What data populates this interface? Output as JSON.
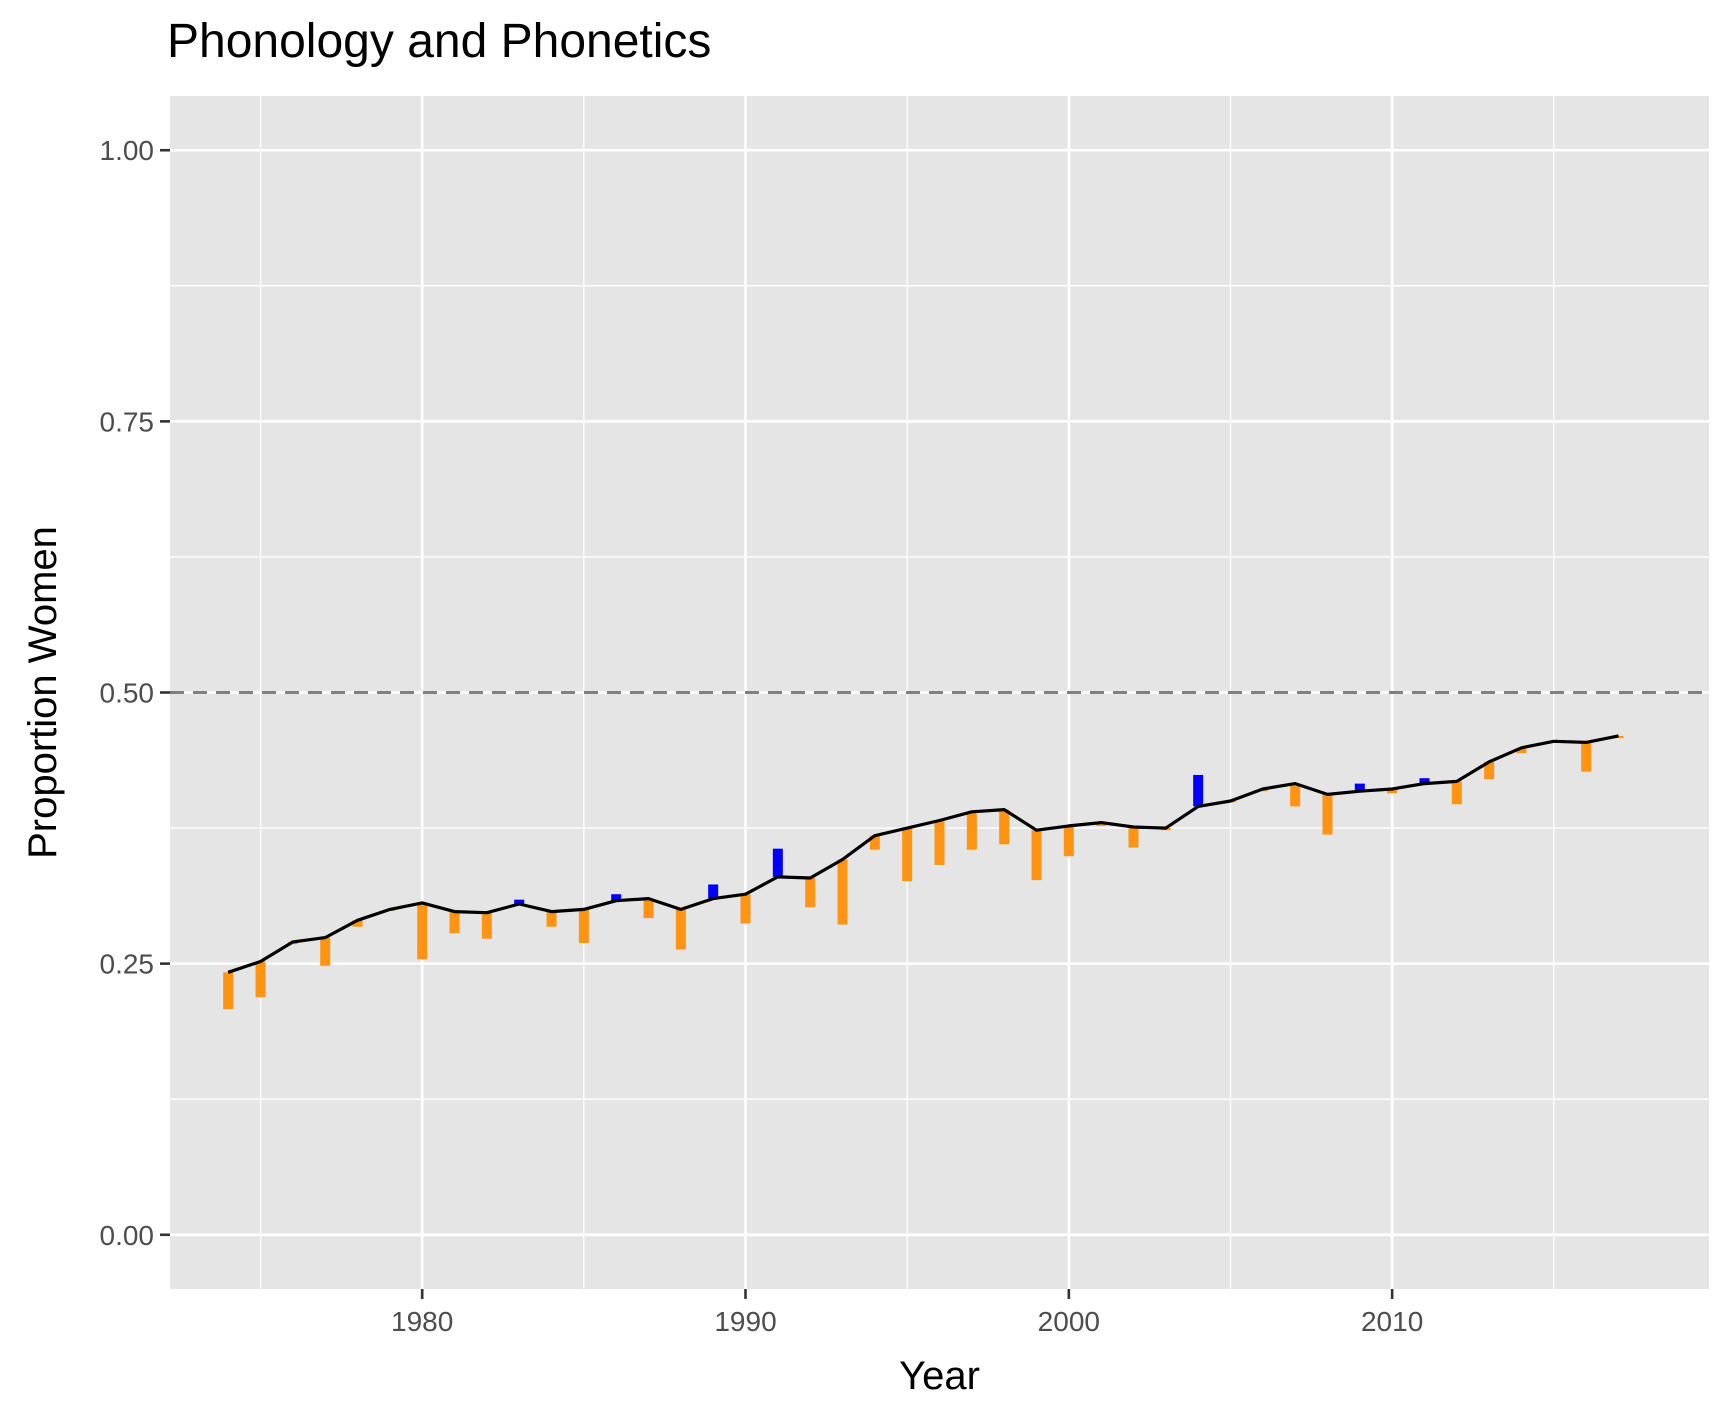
{
  "chart_data": {
    "type": "bar",
    "title": "Phonology and Phonetics",
    "xlabel": "Year",
    "ylabel": "Proportion Women",
    "xlim": [
      1972.2,
      2019.8
    ],
    "ylim": [
      -0.05,
      1.05
    ],
    "x_ticks": [
      1980,
      1990,
      2000,
      2010
    ],
    "y_ticks": [
      "0.00",
      "0.25",
      "0.50",
      "0.75",
      "1.00"
    ],
    "y_minor_ticks": [
      0.125,
      0.375,
      0.625,
      0.875
    ],
    "x_minor_ticks": [
      1975,
      1985,
      1995,
      2005,
      2015
    ],
    "grid": true,
    "panel_background": "#e5e5e5",
    "reference_line": {
      "y": 0.5,
      "style": "dashed",
      "color": "#808080"
    },
    "colors": {
      "below_trend": "#ff9412",
      "above_trend": "#0000ff",
      "trend_line": "#000000"
    },
    "series": [
      {
        "role": "trend line",
        "x": [
          1974,
          1975,
          1976,
          1977,
          1978,
          1979,
          1980,
          1981,
          1982,
          1983,
          1984,
          1985,
          1986,
          1987,
          1988,
          1989,
          1990,
          1991,
          1992,
          1993,
          1994,
          1995,
          1996,
          1997,
          1998,
          1999,
          2000,
          2001,
          2002,
          2003,
          2004,
          2005,
          2006,
          2007,
          2008,
          2009,
          2010,
          2011,
          2012,
          2013,
          2014,
          2015,
          2016,
          2017
        ],
        "y": [
          0.242,
          0.252,
          0.27,
          0.274,
          0.29,
          0.3,
          0.306,
          0.298,
          0.297,
          0.305,
          0.298,
          0.3,
          0.308,
          0.31,
          0.3,
          0.31,
          0.314,
          0.33,
          0.329,
          0.346,
          0.368,
          0.375,
          0.382,
          0.39,
          0.392,
          0.373,
          0.377,
          0.38,
          0.376,
          0.375,
          0.395,
          0.4,
          0.411,
          0.416,
          0.406,
          0.409,
          0.411,
          0.416,
          0.418,
          0.436,
          0.449,
          0.455,
          0.454,
          0.46
        ]
      },
      {
        "role": "yearly proportion",
        "x": [
          1974,
          1975,
          1976,
          1977,
          1978,
          1979,
          1980,
          1981,
          1982,
          1983,
          1984,
          1985,
          1986,
          1987,
          1988,
          1989,
          1990,
          1991,
          1992,
          1993,
          1994,
          1995,
          1996,
          1997,
          1998,
          1999,
          2000,
          2001,
          2002,
          2003,
          2004,
          2005,
          2006,
          2007,
          2008,
          2009,
          2010,
          2011,
          2012,
          2013,
          2014,
          2015,
          2016,
          2017
        ],
        "y": [
          0.208,
          0.219,
          0.268,
          0.248,
          0.284,
          0.3,
          0.254,
          0.278,
          0.273,
          0.309,
          0.284,
          0.269,
          0.314,
          0.292,
          0.263,
          0.323,
          0.287,
          0.356,
          0.302,
          0.286,
          0.355,
          0.326,
          0.341,
          0.355,
          0.36,
          0.327,
          0.349,
          0.377,
          0.357,
          0.373,
          0.424,
          0.399,
          0.409,
          0.395,
          0.369,
          0.416,
          0.407,
          0.421,
          0.397,
          0.42,
          0.444,
          0.454,
          0.427,
          0.458
        ]
      }
    ]
  }
}
